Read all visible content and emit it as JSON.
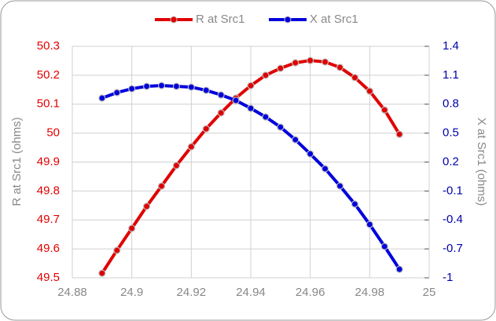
{
  "chart_data": {
    "type": "line",
    "x_label_left": "R at Src1 (ohms)",
    "y_label": "R at Src1 (ohms)",
    "y2_label": "X at Src1 (ohms)",
    "x": [
      24.89,
      24.895,
      24.9,
      24.905,
      24.91,
      24.915,
      24.92,
      24.925,
      24.93,
      24.935,
      24.94,
      24.945,
      24.95,
      24.955,
      24.96,
      24.965,
      24.97,
      24.975,
      24.98,
      24.985,
      24.99
    ],
    "series": [
      {
        "name": "R at Src1",
        "color": "#e00000",
        "axis": "y",
        "values": [
          49.516,
          49.595,
          49.671,
          49.747,
          49.817,
          49.888,
          49.953,
          50.015,
          50.07,
          50.121,
          50.164,
          50.2,
          50.224,
          50.243,
          50.251,
          50.246,
          50.227,
          50.192,
          50.145,
          50.08,
          49.996
        ]
      },
      {
        "name": "X at Src1",
        "color": "#0000dd",
        "axis": "y2",
        "values": [
          0.863,
          0.92,
          0.96,
          0.985,
          0.993,
          0.985,
          0.977,
          0.944,
          0.896,
          0.839,
          0.757,
          0.668,
          0.562,
          0.432,
          0.285,
          0.131,
          -0.048,
          -0.235,
          -0.447,
          -0.675,
          -0.911
        ]
      }
    ],
    "xlim": [
      24.88,
      25
    ],
    "xticks": [
      24.88,
      24.9,
      24.92,
      24.94,
      24.96,
      24.98,
      25
    ],
    "ylim": [
      49.5,
      50.3
    ],
    "yticks": [
      49.5,
      49.6,
      49.7,
      49.8,
      49.9,
      50,
      50.1,
      50.2,
      50.3
    ],
    "y2lim": [
      -1,
      1.4
    ],
    "y2ticks": [
      -1,
      -0.7,
      -0.4,
      -0.1,
      0.2,
      0.5,
      0.8,
      1.1,
      1.4
    ],
    "grid": true,
    "legend": "top"
  }
}
